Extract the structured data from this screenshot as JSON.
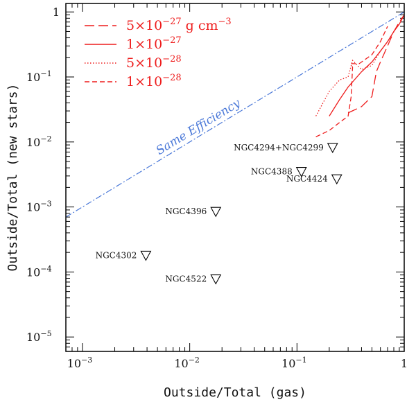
{
  "chart_data": {
    "type": "scatter",
    "title": "",
    "xlabel": "Outside/Total (gas)",
    "ylabel": "Outside/Total (new stars)",
    "xscale": "log",
    "yscale": "log",
    "xlim": [
      0.0007,
      1.0
    ],
    "ylim": [
      6e-06,
      1.35
    ],
    "x_ticks": [
      {
        "value": 0.001,
        "mantissa": "10",
        "exp": "−3"
      },
      {
        "value": 0.01,
        "mantissa": "10",
        "exp": "−2"
      },
      {
        "value": 0.1,
        "mantissa": "10",
        "exp": "−1"
      },
      {
        "value": 1,
        "mantissa": "1",
        "exp": ""
      }
    ],
    "y_ticks": [
      {
        "value": 1e-05,
        "mantissa": "10",
        "exp": "−5"
      },
      {
        "value": 0.0001,
        "mantissa": "10",
        "exp": "−4"
      },
      {
        "value": 0.001,
        "mantissa": "10",
        "exp": "−3"
      },
      {
        "value": 0.01,
        "mantissa": "10",
        "exp": "−2"
      },
      {
        "value": 0.1,
        "mantissa": "10",
        "exp": "−1"
      },
      {
        "value": 1,
        "mantissa": "1",
        "exp": ""
      }
    ],
    "points": [
      {
        "name": "NGC4294+NGC4299",
        "x": 0.215,
        "y": 0.0082,
        "marker": "down-triangle",
        "label_align": "left"
      },
      {
        "name": "NGC4388",
        "x": 0.11,
        "y": 0.0035,
        "marker": "down-triangle",
        "label_align": "left"
      },
      {
        "name": "NGC4424",
        "x": 0.235,
        "y": 0.0027,
        "marker": "down-triangle",
        "label_align": "left"
      },
      {
        "name": "NGC4396",
        "x": 0.0175,
        "y": 0.00085,
        "marker": "down-triangle",
        "label_align": "left"
      },
      {
        "name": "NGC4302",
        "x": 0.0039,
        "y": 0.00018,
        "marker": "down-triangle",
        "label_align": "left"
      },
      {
        "name": "NGC4522",
        "x": 0.0175,
        "y": 7.8e-05,
        "marker": "down-triangle",
        "label_align": "left"
      }
    ],
    "reference_line": {
      "label": "Same Efficiency",
      "color": "#4a78d8",
      "style": "dashdot",
      "x": [
        0.0007,
        1.0
      ],
      "y": [
        0.0007,
        1.0
      ]
    },
    "series": [
      {
        "name": "5×10⁻²⁷ g cm⁻³",
        "legend_mantissa": "5×10",
        "legend_exp": "−27",
        "legend_unit": " g cm",
        "legend_unit_exp": "−3",
        "style": "longdash",
        "color": "#ee1c1c",
        "x": [
          0.3,
          0.4,
          0.5,
          0.55,
          0.6,
          0.7,
          0.8,
          0.9,
          1.0
        ],
        "y": [
          0.028,
          0.035,
          0.05,
          0.12,
          0.17,
          0.3,
          0.5,
          0.7,
          0.9
        ]
      },
      {
        "name": "1×10⁻²⁷",
        "legend_mantissa": "1×10",
        "legend_exp": "−27",
        "legend_unit": "",
        "legend_unit_exp": "",
        "style": "solid",
        "color": "#ee1c1c",
        "x": [
          0.2,
          0.25,
          0.3,
          0.4,
          0.5,
          0.6,
          0.7,
          0.8,
          0.9,
          1.0
        ],
        "y": [
          0.025,
          0.045,
          0.07,
          0.12,
          0.17,
          0.25,
          0.35,
          0.5,
          0.65,
          0.9
        ]
      },
      {
        "name": "5×10⁻²⁸",
        "legend_mantissa": "5×10",
        "legend_exp": "−28",
        "legend_unit": "",
        "legend_unit_exp": "",
        "style": "dotted",
        "color": "#ee1c1c",
        "x": [
          0.15,
          0.2,
          0.25,
          0.3,
          0.33,
          0.4,
          0.5,
          0.6,
          0.7,
          0.8
        ],
        "y": [
          0.025,
          0.06,
          0.09,
          0.1,
          0.18,
          0.13,
          0.15,
          0.25,
          0.35,
          0.5
        ]
      },
      {
        "name": "1×10⁻²⁸",
        "legend_mantissa": "1×10",
        "legend_exp": "−28",
        "legend_unit": "",
        "legend_unit_exp": "",
        "style": "dashed",
        "color": "#ee1c1c",
        "x": [
          0.15,
          0.2,
          0.25,
          0.3,
          0.32,
          0.33,
          0.32,
          0.38,
          0.5,
          0.6,
          0.7
        ],
        "y": [
          0.012,
          0.015,
          0.02,
          0.025,
          0.05,
          0.14,
          0.16,
          0.16,
          0.22,
          0.35,
          0.6
        ]
      }
    ],
    "legend_position": "top-left"
  }
}
